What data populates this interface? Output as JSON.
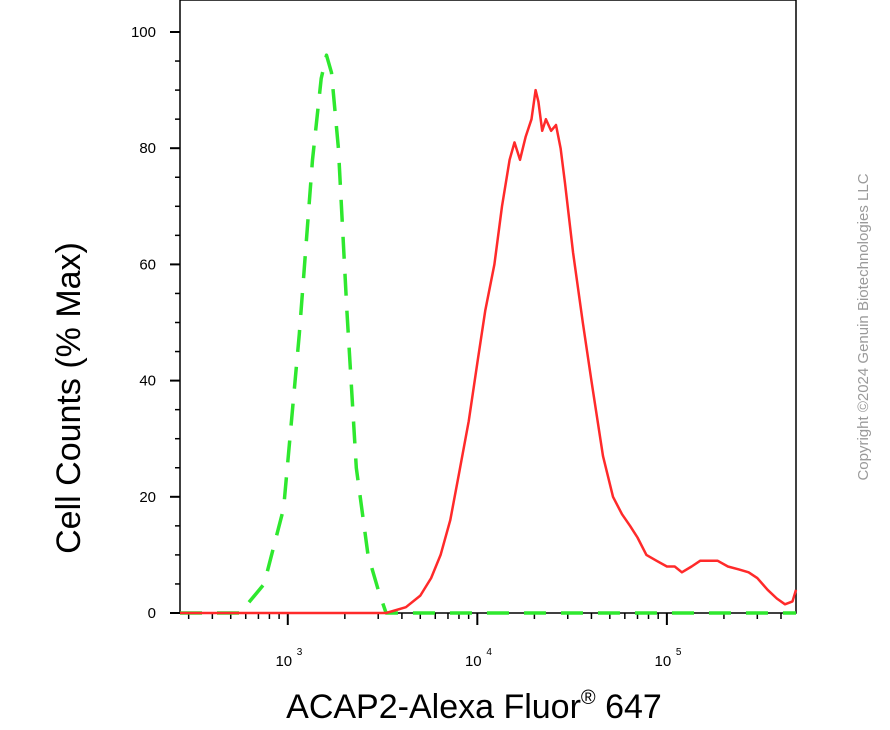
{
  "chart_data": {
    "type": "line",
    "title": "",
    "xlabel": "ACAP2-Alexa Fluor",
    "xlabel_superscript": "®",
    "xlabel_suffix": " 647",
    "ylabel": "Cell Counts (% Max)",
    "x_scale": "log",
    "xlim": [
      270,
      480000
    ],
    "ylim": [
      0,
      100
    ],
    "y_ticks": [
      0,
      20,
      40,
      60,
      80,
      100
    ],
    "x_ticks": [
      {
        "value": 1000,
        "base": "10",
        "exp": "3"
      },
      {
        "value": 10000,
        "base": "10",
        "exp": "4"
      },
      {
        "value": 100000,
        "base": "10",
        "exp": "5"
      }
    ],
    "grid": false,
    "legend": "none",
    "series": [
      {
        "color": "#2ee82e",
        "dash": "dashed",
        "x": [
          270,
          560,
          750,
          950,
          1150,
          1350,
          1500,
          1600,
          1700,
          1850,
          2050,
          2300,
          2650,
          3000,
          3300,
          3700,
          10000,
          100000,
          480000
        ],
        "y": [
          0,
          0,
          5,
          18,
          48,
          78,
          92,
          96,
          93,
          80,
          52,
          25,
          10,
          4,
          0,
          0,
          0,
          0,
          0
        ]
      },
      {
        "color": "#ff2a2a",
        "dash": "solid",
        "x": [
          270,
          1500,
          2500,
          3300,
          4200,
          5000,
          5700,
          6400,
          7200,
          8000,
          9000,
          10000,
          11000,
          12300,
          13500,
          14800,
          15700,
          16800,
          18000,
          19300,
          20300,
          21000,
          22000,
          23000,
          24500,
          26000,
          27500,
          29000,
          32000,
          36000,
          40000,
          46000,
          52000,
          58000,
          64000,
          70000,
          78000,
          88000,
          100000,
          110000,
          120000,
          135000,
          150000,
          165000,
          185000,
          210000,
          240000,
          270000,
          300000,
          340000,
          380000,
          420000,
          460000,
          480000
        ],
        "y": [
          0,
          0,
          0,
          0,
          1,
          3,
          6,
          10,
          16,
          24,
          33,
          43,
          52,
          60,
          70,
          78,
          81,
          78,
          82,
          85,
          90,
          88,
          83,
          85,
          83,
          84,
          80,
          74,
          62,
          50,
          40,
          27,
          20,
          17,
          15,
          13,
          10,
          9,
          8,
          8,
          7,
          8,
          9,
          9,
          9,
          8,
          7.5,
          7,
          6,
          4,
          2.5,
          1.5,
          2,
          4
        ]
      }
    ]
  },
  "watermark": "Copyright ©2024 Genuin Biotechnologies LLC"
}
